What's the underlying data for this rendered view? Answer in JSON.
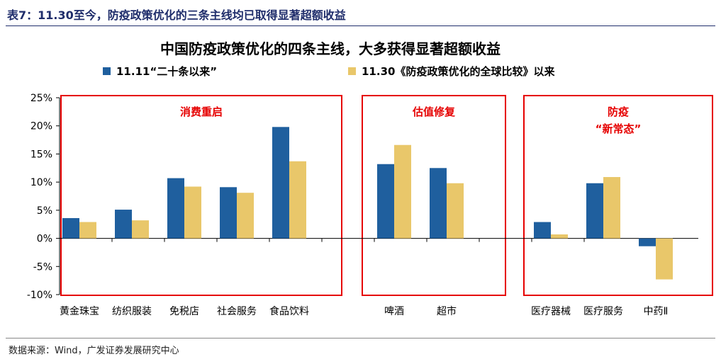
{
  "header": {
    "title": "表7：11.30至今，防疫政策优化的三条主线均已取得显著超额收益"
  },
  "footer": {
    "source": "数据来源：Wind，广发证券发展研究中心"
  },
  "colors": {
    "series1": "#1f5f9e",
    "series2": "#e9c76a",
    "box": "#e60000",
    "header": "#1f2d6b"
  },
  "chart_data": {
    "type": "bar",
    "title": "中国防疫政策优化的四条主线，大多获得显著超额收益",
    "xlabel": "",
    "ylabel": "",
    "ylim": [
      -10,
      25
    ],
    "yticks": [
      -10,
      -5,
      0,
      5,
      10,
      15,
      20,
      25
    ],
    "ytick_labels": [
      "-10%",
      "-5%",
      "0%",
      "5%",
      "10%",
      "15%",
      "20%",
      "25%"
    ],
    "categories": [
      "黄金珠宝",
      "纺织服装",
      "免税店",
      "社会服务",
      "食品饮料",
      "啤酒",
      "超市",
      "医疗器械",
      "医疗服务",
      "中药Ⅱ"
    ],
    "series": [
      {
        "name": "11.11“二十条以来”",
        "values": [
          3.6,
          5.1,
          10.7,
          9.1,
          19.8,
          13.2,
          12.5,
          2.9,
          9.8,
          -1.4
        ]
      },
      {
        "name": "11.30《防疫政策优化的全球比较》以来",
        "values": [
          2.9,
          3.2,
          9.2,
          8.1,
          13.7,
          16.6,
          9.8,
          0.7,
          10.9,
          -7.3
        ]
      }
    ],
    "groups": [
      {
        "label_lines": [
          "消费重启"
        ],
        "start": 0,
        "end": 4
      },
      {
        "label_lines": [
          "估值修复"
        ],
        "start": 5,
        "end": 6
      },
      {
        "label_lines": [
          "防疫",
          "“新常态”"
        ],
        "start": 7,
        "end": 9
      }
    ],
    "grid": false,
    "legend": "top"
  }
}
